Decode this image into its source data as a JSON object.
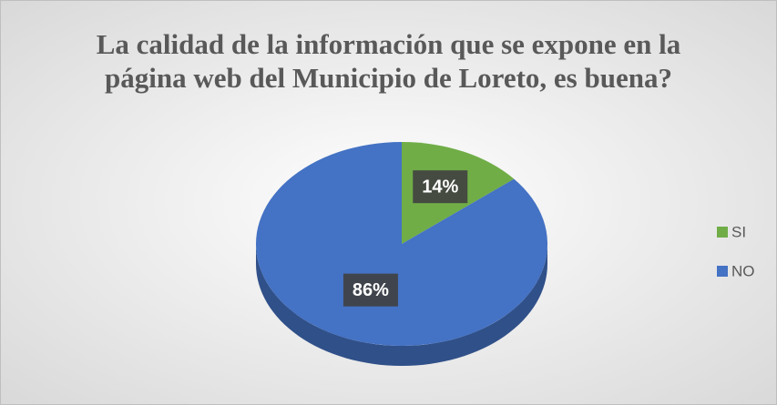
{
  "chart_data": {
    "type": "pie",
    "title": "La calidad de la información que se expone en la página web del Municipio de Loreto, es buena?",
    "categories": [
      "SI",
      "NO"
    ],
    "values": [
      14,
      86
    ],
    "value_labels": [
      "14%",
      "86%"
    ],
    "colors": [
      "#70ad47",
      "#4472c4"
    ],
    "legend": "right"
  }
}
